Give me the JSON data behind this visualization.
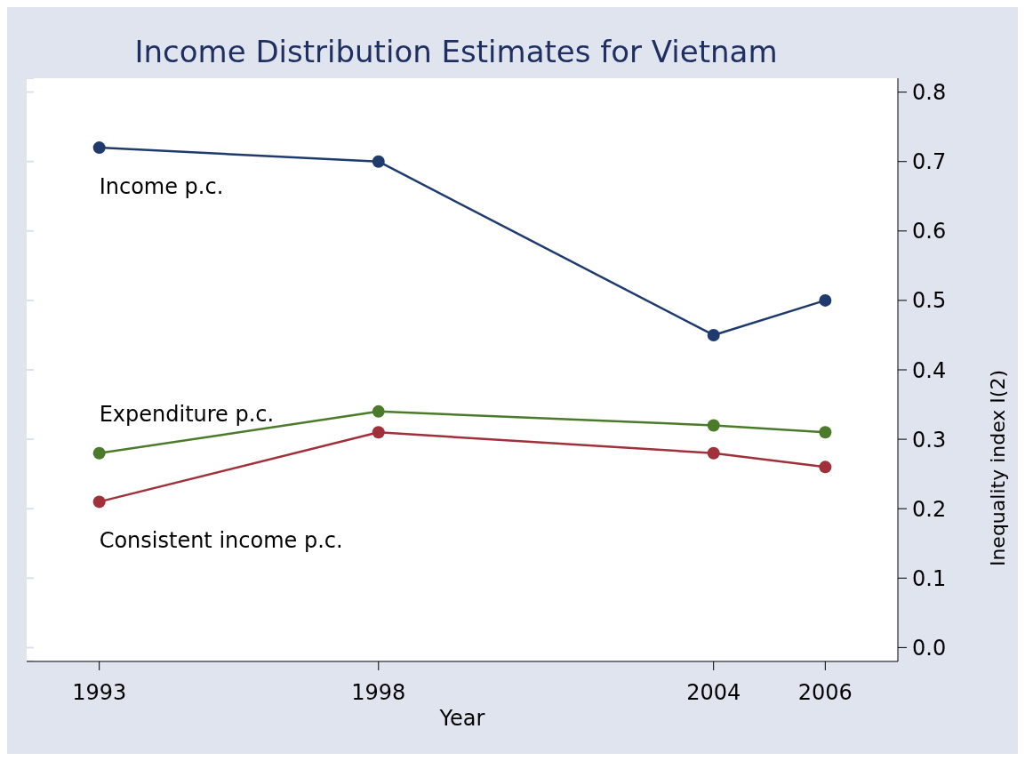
{
  "chart_data": {
    "type": "line",
    "title": "Income Distribution Estimates for Vietnam",
    "xlabel": "Year",
    "ylabel": "Inequality index I(2)",
    "x": [
      1993,
      1998,
      2004,
      2006
    ],
    "series": [
      {
        "name": "Income p.c.",
        "color": "#1f3b6e",
        "values": [
          0.72,
          0.7,
          0.45,
          0.5
        ]
      },
      {
        "name": "Expenditure p.c.",
        "color": "#4a7a2a",
        "values": [
          0.28,
          0.34,
          0.32,
          0.31
        ]
      },
      {
        "name": "Consistent income p.c.",
        "color": "#a0303a",
        "values": [
          0.21,
          0.31,
          0.28,
          0.26
        ]
      }
    ],
    "xlim": [
      1991.7,
      2007.3
    ],
    "xticks": [
      1993,
      1998,
      2004,
      2006
    ],
    "ylim": [
      -0.02,
      0.82
    ],
    "yticks": [
      {
        "value": 0,
        "label": "0.0"
      },
      {
        "value": 0.1,
        "label": "0.1"
      },
      {
        "value": 0.2,
        "label": "0.2"
      },
      {
        "value": 0.3,
        "label": "0.3"
      },
      {
        "value": 0.4,
        "label": "0.4"
      },
      {
        "value": 0.5,
        "label": "0.5"
      },
      {
        "value": 0.6,
        "label": "0.6"
      },
      {
        "value": 0.7,
        "label": "0.7"
      },
      {
        "value": 0.8,
        "label": "0.8"
      }
    ],
    "grid": "y",
    "legend": false,
    "marker": "circle",
    "line_style": "solid"
  }
}
